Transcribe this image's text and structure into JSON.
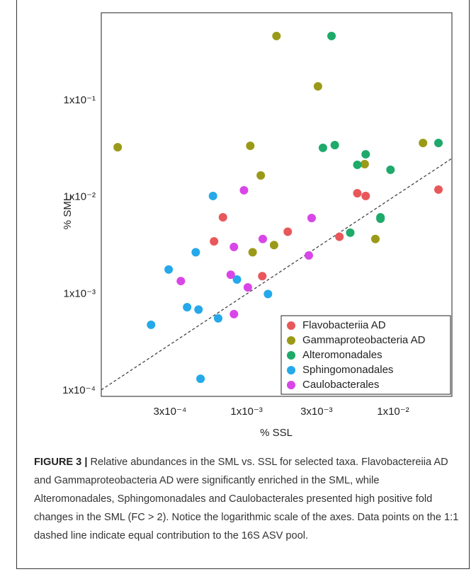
{
  "chart_data": {
    "type": "scatter",
    "xlabel": "% SSL",
    "ylabel": "% SML",
    "log_x": true,
    "log_y": true,
    "xlim": [
      0.000102,
      0.0252
    ],
    "ylim": [
      8.74e-05,
      0.807
    ],
    "xticks": [
      {
        "value": 0.0003,
        "label": "3x10⁻⁴"
      },
      {
        "value": 0.001,
        "label": "1x10⁻³"
      },
      {
        "value": 0.003,
        "label": "3x10⁻³"
      },
      {
        "value": 0.01,
        "label": "1x10⁻²"
      }
    ],
    "yticks": [
      {
        "value": 0.0001,
        "label": "1x10⁻⁴"
      },
      {
        "value": 0.001,
        "label": "1x10⁻³"
      },
      {
        "value": 0.01,
        "label": "1x10⁻²"
      },
      {
        "value": 0.1,
        "label": "1x10⁻¹"
      }
    ],
    "grid": false,
    "legend": "lower right",
    "series": [
      {
        "name": "Flavobacteriia AD",
        "color": "#e8585a",
        "x": [
          0.0006,
          0.00069,
          0.00128,
          0.00191,
          0.0043,
          0.0057,
          0.0065,
          0.0204
        ],
        "values": [
          0.0035,
          0.0062,
          0.00153,
          0.0044,
          0.0039,
          0.011,
          0.0103,
          0.012
        ]
      },
      {
        "name": "Gammaproteobacteria AD",
        "color": "#9a9a18",
        "x": [
          0.000132,
          0.0016,
          0.00307,
          0.00106,
          0.00125,
          0.0011,
          0.00154,
          0.00757,
          0.0064,
          0.016
        ],
        "values": [
          0.0329,
          0.464,
          0.14,
          0.034,
          0.0168,
          0.0027,
          0.0032,
          0.0037,
          0.022,
          0.0364
        ]
      },
      {
        "name": "Alteromonadales",
        "color": "#1eaa6a",
        "x": [
          0.0038,
          0.00332,
          0.004,
          0.0065,
          0.0057,
          0.0096,
          0.0204,
          0.0051,
          0.0082,
          0.0082
        ],
        "values": [
          0.464,
          0.0324,
          0.0346,
          0.0278,
          0.0216,
          0.0192,
          0.0364,
          0.0043,
          0.006,
          0.0062
        ]
      },
      {
        "name": "Sphingomonadales",
        "color": "#25a9ea",
        "x": [
          0.00059,
          0.00045,
          0.000294,
          0.000393,
          0.00047,
          0.000223,
          0.00064,
          0.00086,
          0.0014,
          0.000485
        ],
        "values": [
          0.0103,
          0.0027,
          0.00179,
          0.00073,
          0.00069,
          0.00048,
          0.00056,
          0.00141,
          0.001,
          0.000133
        ]
      },
      {
        "name": "Caulobacterales",
        "color": "#d946e8",
        "x": [
          0.00096,
          0.00278,
          0.00129,
          0.00082,
          0.000356,
          0.00078,
          0.00102,
          0.00082,
          0.00266
        ],
        "values": [
          0.0118,
          0.0061,
          0.0037,
          0.00306,
          0.00136,
          0.00158,
          0.00117,
          0.00062,
          0.0025
        ]
      }
    ],
    "caption": {
      "label": "FIGURE 3 |",
      "text": "Relative abundances in the SML vs. SSL for selected taxa. Flavobactereiia AD and Gammaproteobacteria AD were significantly enriched in the SML, while Alteromonadales, Sphingomonadales and Caulobacterales presented high positive fold changes in the SML (FC > 2). Notice the logarithmic scale of the axes. Data points on the 1:1 dashed line indicate equal contribution to the 16S ASV pool."
    }
  }
}
